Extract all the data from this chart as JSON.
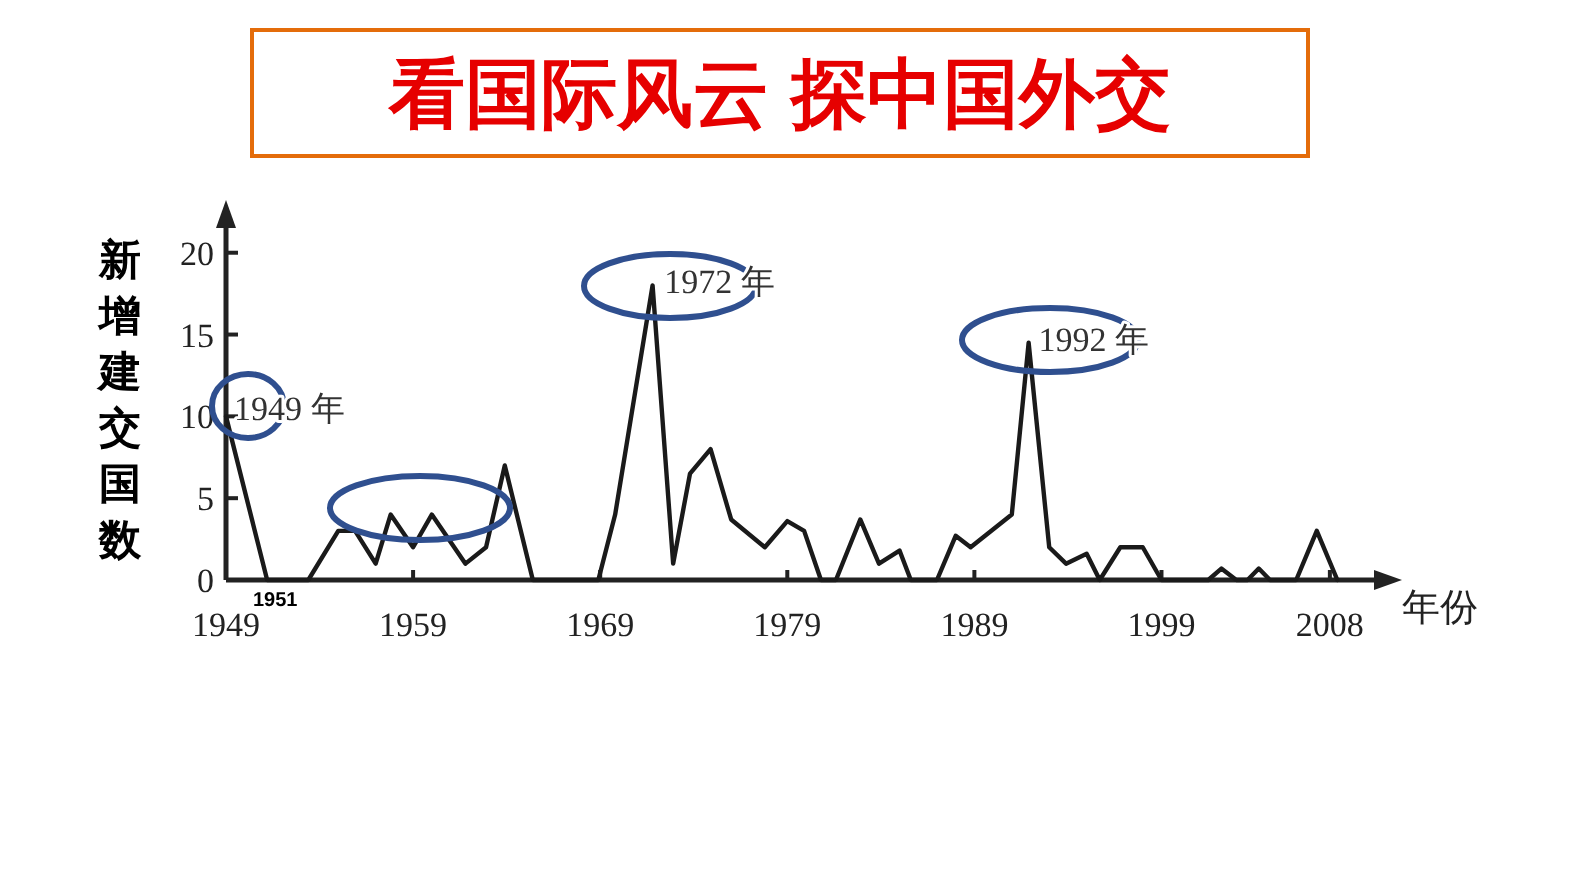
{
  "chart_data": {
    "type": "line",
    "title": "看国际风云  探中国外交",
    "ylabel": "新增建交国数",
    "xlabel": "年份",
    "x": [
      1949,
      1951.2,
      1953.4,
      1955,
      1955.9,
      1957,
      1957.8,
      1959,
      1960,
      1961.8,
      1962.9,
      1963.9,
      1965.4,
      1968.9,
      1969.8,
      1971.8,
      1972.9,
      1973.8,
      1974.9,
      1976,
      1977.8,
      1979,
      1979.9,
      1980.8,
      1981.6,
      1982.9,
      1983.9,
      1985,
      1985.6,
      1987,
      1988,
      1988.8,
      1991,
      1991.9,
      1993,
      1993.9,
      1995,
      1995.7,
      1996.8,
      1998,
      1999,
      2001.5,
      2002.2,
      2003,
      2003.6,
      2004.2,
      2004.8,
      2006.2,
      2007.3,
      2008.4
    ],
    "values": [
      10,
      0,
      0,
      3,
      3,
      1,
      4,
      2,
      4,
      1,
      2,
      7,
      0,
      0,
      4,
      18,
      1,
      6.5,
      8,
      3.7,
      2,
      3.6,
      3,
      0,
      0,
      3.7,
      1,
      1.8,
      0,
      0,
      2.7,
      2,
      4,
      14.5,
      2,
      1,
      1.6,
      0,
      2,
      2,
      0,
      0,
      0.7,
      0,
      0,
      0.7,
      0,
      0,
      3,
      0
    ],
    "color": "#1a1a1a",
    "xlim": [
      1949,
      2011
    ],
    "ylim": [
      0,
      22
    ],
    "xticks": [
      1949,
      1959,
      1969,
      1979,
      1989,
      1999,
      2008
    ],
    "yticks": [
      0,
      5,
      10,
      15,
      20
    ],
    "annotations": [
      {
        "text": "1949 年",
        "x": 1949,
        "y": 10
      },
      {
        "text": "1972 年",
        "x": 1972,
        "y": 18
      },
      {
        "text": "1992 年",
        "x": 1992,
        "y": 14.5
      },
      {
        "text": "1951",
        "x": 1951.2,
        "y": 0
      }
    ],
    "grid": false,
    "marker": "none",
    "line_style": "solid"
  }
}
